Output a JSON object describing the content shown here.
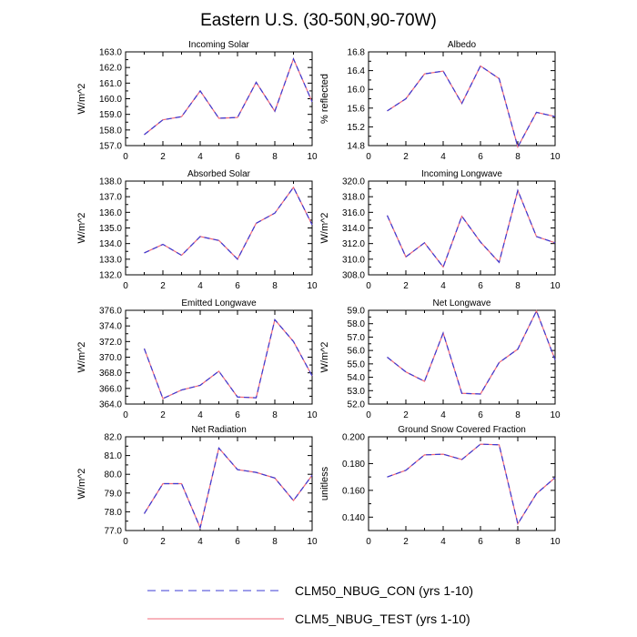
{
  "title": "Eastern U.S. (30-50N,90-70W)",
  "colors": {
    "con": "#3b3bd4",
    "test": "#f06a7a",
    "axis": "#000000"
  },
  "legend": [
    {
      "key": "con",
      "label": "CLM50_NBUG_CON (yrs 1-10)",
      "style": "dashed"
    },
    {
      "key": "test",
      "label": "CLM5_NBUG_TEST (yrs 1-10)",
      "style": "solid"
    }
  ],
  "chart_data": [
    {
      "type": "line",
      "title": "Incoming Solar",
      "ylabel": "W/m^2",
      "xlim": [
        0,
        10
      ],
      "ylim": [
        157.0,
        163.0
      ],
      "xticks": [
        "0",
        "2",
        "4",
        "6",
        "8",
        "10"
      ],
      "yticks": [
        "157.0",
        "158.0",
        "159.0",
        "160.0",
        "161.0",
        "162.0",
        "163.0"
      ],
      "x": [
        1,
        2,
        3,
        4,
        5,
        6,
        7,
        8,
        9,
        10
      ],
      "series": [
        {
          "name": "CLM50_NBUG_CON (yrs 1-10)",
          "values": [
            157.7,
            158.65,
            158.85,
            160.5,
            158.75,
            158.8,
            161.05,
            159.2,
            162.55,
            159.8
          ]
        },
        {
          "name": "CLM5_NBUG_TEST (yrs 1-10)",
          "values": [
            157.7,
            158.65,
            158.85,
            160.5,
            158.75,
            158.8,
            161.05,
            159.2,
            162.55,
            159.8
          ]
        }
      ]
    },
    {
      "type": "line",
      "title": "Albedo",
      "ylabel": "% reflected",
      "xlim": [
        0,
        10
      ],
      "ylim": [
        14.8,
        16.8
      ],
      "xticks": [
        "0",
        "2",
        "4",
        "6",
        "8",
        "10"
      ],
      "yticks": [
        "14.8",
        "15.2",
        "15.6",
        "16.0",
        "16.4",
        "16.8"
      ],
      "x": [
        1,
        2,
        3,
        4,
        5,
        6,
        7,
        8,
        9,
        10
      ],
      "series": [
        {
          "name": "CLM50_NBUG_CON (yrs 1-10)",
          "values": [
            15.54,
            15.8,
            16.33,
            16.39,
            15.7,
            16.5,
            16.23,
            14.77,
            15.51,
            15.42
          ]
        },
        {
          "name": "CLM5_NBUG_TEST (yrs 1-10)",
          "values": [
            15.54,
            15.8,
            16.33,
            16.39,
            15.7,
            16.5,
            16.23,
            14.77,
            15.51,
            15.42
          ]
        }
      ]
    },
    {
      "type": "line",
      "title": "Absorbed Solar",
      "ylabel": "W/m^2",
      "xlim": [
        0,
        10
      ],
      "ylim": [
        132.0,
        138.0
      ],
      "xticks": [
        "0",
        "2",
        "4",
        "6",
        "8",
        "10"
      ],
      "yticks": [
        "132.0",
        "133.0",
        "134.0",
        "135.0",
        "136.0",
        "137.0",
        "138.0"
      ],
      "x": [
        1,
        2,
        3,
        4,
        5,
        6,
        7,
        8,
        9,
        10
      ],
      "series": [
        {
          "name": "CLM50_NBUG_CON (yrs 1-10)",
          "values": [
            133.4,
            133.95,
            133.25,
            134.45,
            134.2,
            133.0,
            135.3,
            135.95,
            137.6,
            135.2
          ]
        },
        {
          "name": "CLM5_NBUG_TEST (yrs 1-10)",
          "values": [
            133.4,
            133.95,
            133.25,
            134.45,
            134.2,
            133.0,
            135.3,
            135.95,
            137.6,
            135.2
          ]
        }
      ]
    },
    {
      "type": "line",
      "title": "Incoming Longwave",
      "ylabel": "W/m^2",
      "xlim": [
        0,
        10
      ],
      "ylim": [
        308.0,
        320.0
      ],
      "xticks": [
        "0",
        "2",
        "4",
        "6",
        "8",
        "10"
      ],
      "yticks": [
        "308.0",
        "310.0",
        "312.0",
        "314.0",
        "316.0",
        "318.0",
        "320.0"
      ],
      "x": [
        1,
        2,
        3,
        4,
        5,
        6,
        7,
        8,
        9,
        10
      ],
      "series": [
        {
          "name": "CLM50_NBUG_CON (yrs 1-10)",
          "values": [
            315.6,
            310.3,
            312.1,
            309.0,
            315.5,
            312.2,
            309.6,
            318.8,
            312.9,
            312.1
          ]
        },
        {
          "name": "CLM5_NBUG_TEST (yrs 1-10)",
          "values": [
            315.6,
            310.3,
            312.1,
            309.0,
            315.5,
            312.2,
            309.6,
            318.8,
            312.9,
            312.1
          ]
        }
      ]
    },
    {
      "type": "line",
      "title": "Emitted Longwave",
      "ylabel": "W/m^2",
      "xlim": [
        0,
        10
      ],
      "ylim": [
        364.0,
        376.0
      ],
      "xticks": [
        "0",
        "2",
        "4",
        "6",
        "8",
        "10"
      ],
      "yticks": [
        "364.0",
        "366.0",
        "368.0",
        "370.0",
        "372.0",
        "374.0",
        "376.0"
      ],
      "x": [
        1,
        2,
        3,
        4,
        5,
        6,
        7,
        8,
        9,
        10
      ],
      "series": [
        {
          "name": "CLM50_NBUG_CON (yrs 1-10)",
          "values": [
            371.1,
            364.7,
            365.8,
            366.4,
            368.2,
            364.9,
            364.8,
            374.8,
            372.0,
            367.6
          ]
        },
        {
          "name": "CLM5_NBUG_TEST (yrs 1-10)",
          "values": [
            371.1,
            364.7,
            365.8,
            366.4,
            368.2,
            364.9,
            364.8,
            374.8,
            372.0,
            367.6
          ]
        }
      ]
    },
    {
      "type": "line",
      "title": "Net Longwave",
      "ylabel": "W/m^2",
      "xlim": [
        0,
        10
      ],
      "ylim": [
        52.0,
        59.0
      ],
      "xticks": [
        "0",
        "2",
        "4",
        "6",
        "8",
        "10"
      ],
      "yticks": [
        "52.0",
        "53.0",
        "54.0",
        "55.0",
        "56.0",
        "57.0",
        "58.0",
        "59.0"
      ],
      "x": [
        1,
        2,
        3,
        4,
        5,
        6,
        7,
        8,
        9,
        10
      ],
      "series": [
        {
          "name": "CLM50_NBUG_CON (yrs 1-10)",
          "values": [
            55.5,
            54.4,
            53.7,
            57.3,
            52.8,
            52.75,
            55.1,
            56.1,
            58.95,
            55.3
          ]
        },
        {
          "name": "CLM5_NBUG_TEST (yrs 1-10)",
          "values": [
            55.5,
            54.4,
            53.7,
            57.3,
            52.8,
            52.75,
            55.1,
            56.1,
            58.95,
            55.3
          ]
        }
      ]
    },
    {
      "type": "line",
      "title": "Net Radiation",
      "ylabel": "W/m^2",
      "xlim": [
        0,
        10
      ],
      "ylim": [
        77.0,
        82.0
      ],
      "xticks": [
        "0",
        "2",
        "4",
        "6",
        "8",
        "10"
      ],
      "yticks": [
        "77.0",
        "78.0",
        "79.0",
        "80.0",
        "81.0",
        "82.0"
      ],
      "x": [
        1,
        2,
        3,
        4,
        5,
        6,
        7,
        8,
        9,
        10
      ],
      "series": [
        {
          "name": "CLM50_NBUG_CON (yrs 1-10)",
          "values": [
            77.9,
            79.5,
            79.5,
            77.15,
            81.4,
            80.25,
            80.1,
            79.8,
            78.6,
            79.95
          ]
        },
        {
          "name": "CLM5_NBUG_TEST (yrs 1-10)",
          "values": [
            77.9,
            79.5,
            79.5,
            77.15,
            81.4,
            80.25,
            80.1,
            79.8,
            78.6,
            79.95
          ]
        }
      ]
    },
    {
      "type": "line",
      "title": "Ground Snow Covered Fraction",
      "ylabel": "unitless",
      "xlim": [
        0,
        10
      ],
      "ylim": [
        0.13,
        0.2
      ],
      "xticks": [
        "0",
        "2",
        "4",
        "6",
        "8",
        "10"
      ],
      "yticks": [
        "0.140",
        "0.160",
        "0.180",
        "0.200"
      ],
      "ytickvals": [
        0.14,
        0.16,
        0.18,
        0.2
      ],
      "x": [
        1,
        2,
        3,
        4,
        5,
        6,
        7,
        8,
        9,
        10
      ],
      "series": [
        {
          "name": "CLM50_NBUG_CON (yrs 1-10)",
          "values": [
            0.17,
            0.175,
            0.1865,
            0.187,
            0.183,
            0.1945,
            0.194,
            0.135,
            0.1575,
            0.1695
          ]
        },
        {
          "name": "CLM5_NBUG_TEST (yrs 1-10)",
          "values": [
            0.17,
            0.175,
            0.1865,
            0.187,
            0.183,
            0.1945,
            0.194,
            0.135,
            0.1575,
            0.1695
          ]
        }
      ]
    }
  ]
}
